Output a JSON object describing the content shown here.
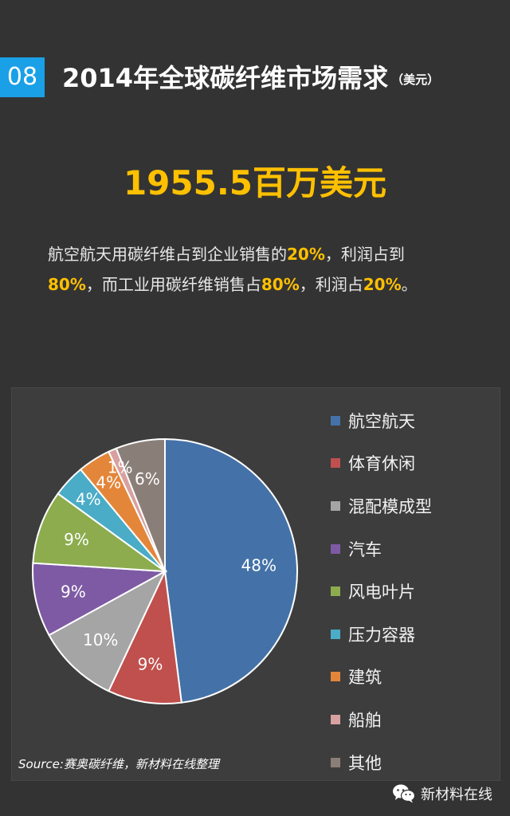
{
  "header": {
    "number": "08",
    "title": "2014年全球碳纤维市场需求",
    "unit": "（美元）"
  },
  "summary": {
    "total": "1955.5百万美元",
    "line1_pre": "航空航天用碳纤维占到企业销售的",
    "line1_val": "20%",
    "line1_post": "，利润占到",
    "line2_val1": "80%",
    "line2_mid": "，而工业用碳纤维销售占",
    "line2_val2": "80%",
    "line2_mid2": "，利润占",
    "line2_val3": "20%",
    "line2_end": "。"
  },
  "chart_data": {
    "type": "pie",
    "categories": [
      "航空航天",
      "体育休闲",
      "混配模成型",
      "汽车",
      "风电叶片",
      "压力容器",
      "建筑",
      "船舶",
      "其他"
    ],
    "values": [
      48,
      9,
      10,
      9,
      9,
      4,
      4,
      1,
      6
    ],
    "labels": [
      "48%",
      "9%",
      "10%",
      "9%",
      "9%",
      "4%",
      "4%",
      "1%",
      "6%"
    ],
    "colors": [
      "#4472a8",
      "#c0504d",
      "#a5a5a5",
      "#7e5aa4",
      "#8cac4e",
      "#4aacc6",
      "#e4863a",
      "#d8a0a0",
      "#8a7f78"
    ],
    "legend_position": "right",
    "start_angle_deg": 0,
    "direction": "clockwise"
  },
  "source": "Source:赛奥碳纤维，新材料在线整理",
  "brand": {
    "icon": "wechat-icon",
    "name": "新材料在线"
  }
}
